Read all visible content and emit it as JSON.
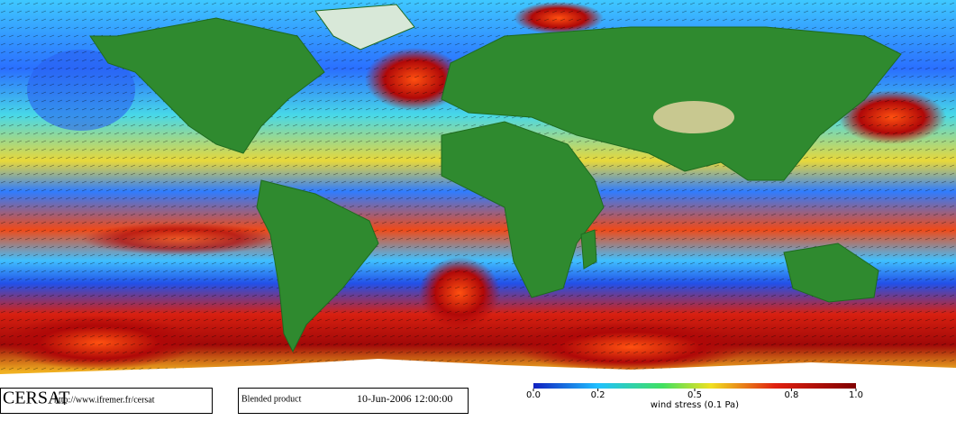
{
  "footer": {
    "logo": "CERSAT",
    "url": "http://www.ifremer.fr/cersat",
    "product": "Blended product",
    "date": "10-Jun-2006 12:00:00"
  },
  "colorbar": {
    "label": "wind stress (0.1 Pa)",
    "ticks": [
      {
        "value": 0,
        "label": "0.0"
      },
      0.2,
      0.5,
      0.8,
      {
        "value": 1,
        "label": "1.0"
      }
    ]
  }
}
